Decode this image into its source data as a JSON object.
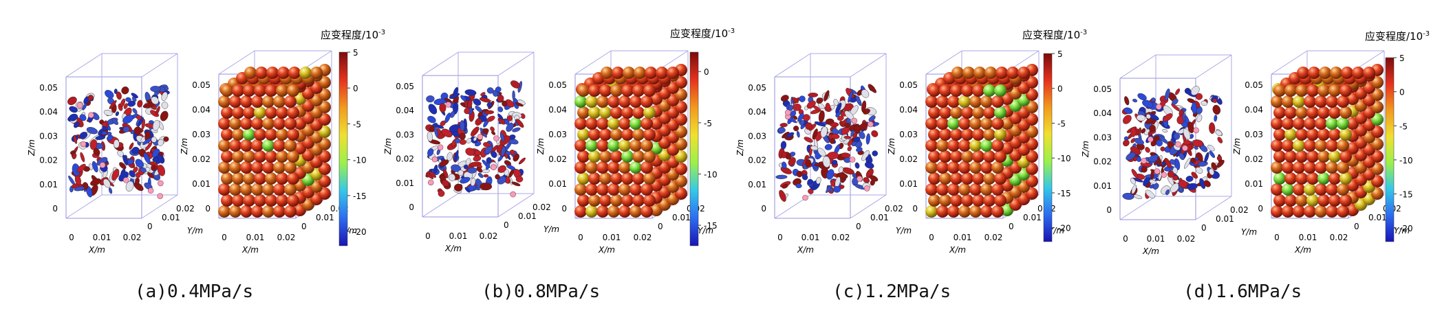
{
  "axis_labels": {
    "x": "X/m",
    "y": "Y/m",
    "z": "Z/m"
  },
  "z_ticks": [
    "0",
    "0.01",
    "0.02",
    "0.03",
    "0.04",
    "0.05"
  ],
  "x_ticks": [
    "0",
    "0.01",
    "0.02"
  ],
  "y_ticks": [
    "0",
    "0.01",
    "0.02"
  ],
  "colorbar_title": "应变程度/10",
  "colorbar_exponent": "-3",
  "colormap": [
    "#1a14b4",
    "#2d6cf0",
    "#35c8e8",
    "#9cf04a",
    "#f0e030",
    "#f29a1e",
    "#e6321e",
    "#7a0c0c"
  ],
  "panels": [
    {
      "caption": "(a)0.4MPa/s",
      "colorbar_ticks": [
        "5",
        "0",
        "-5",
        "-10",
        "-15",
        "-20"
      ]
    },
    {
      "caption": "(b)0.8MPa/s",
      "colorbar_ticks": [
        "0",
        "-5",
        "-10",
        "-15"
      ]
    },
    {
      "caption": "(c)1.2MPa/s",
      "colorbar_ticks": [
        "5",
        "0",
        "-5",
        "-10",
        "-15",
        "-20"
      ]
    },
    {
      "caption": "(d)1.6MPa/s",
      "colorbar_ticks": [
        "5",
        "0",
        "-5",
        "-10",
        "-15",
        "-20"
      ]
    }
  ]
}
